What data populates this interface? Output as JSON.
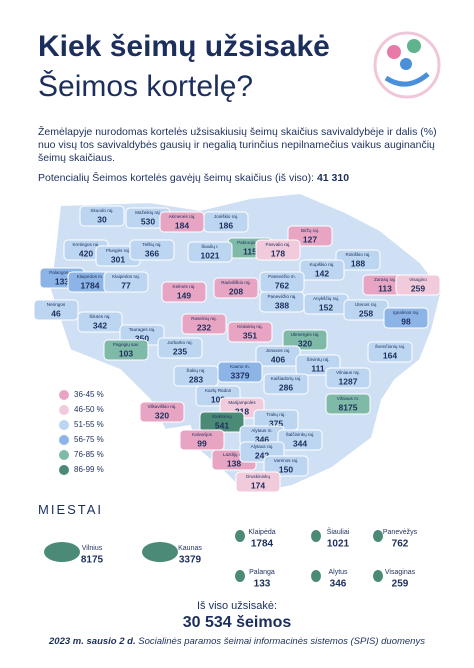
{
  "header": {
    "title_line1": "Kiek šeimų užsisakė",
    "title_line2": "Šeimos kortelę?"
  },
  "intro": {
    "text": "Žemėlapyje nurodomas kortelės užsisakiusių šeimų skaičius savivaldybėje ir dalis (%) nuo visų tos savivaldybės gausių ir negalią turinčius nepilnamečius vaikus auginančių šeimų skaičiaus.",
    "potential_label": "Potencialių Šeimos kortelės gavėjų šeimų skaičius (iš viso):",
    "potential_value": "41 310"
  },
  "legend": [
    {
      "label": "36-45 %",
      "color": "#e7a5c3"
    },
    {
      "label": "46-50 %",
      "color": "#f1cadb"
    },
    {
      "label": "51-55 %",
      "color": "#bcd5f1"
    },
    {
      "label": "56-75 %",
      "color": "#8db4e6"
    },
    {
      "label": "76-85 %",
      "color": "#7fb9a8"
    },
    {
      "label": "86-99 %",
      "color": "#4a8a77"
    }
  ],
  "map": {
    "regions": [
      {
        "name": "Skuodo raj.",
        "value": 30,
        "color": "#bcd5f1"
      },
      {
        "name": "Mažeikių raj.",
        "value": 530,
        "color": "#bcd5f1"
      },
      {
        "name": "Akmenės raj.",
        "value": 184,
        "color": "#e7a5c3"
      },
      {
        "name": "Joniškio raj.",
        "value": 186,
        "color": "#bcd5f1"
      },
      {
        "name": "Pakruojo raj.",
        "value": 115,
        "color": "#7fb9a8"
      },
      {
        "name": "Biržų raj.",
        "value": 127,
        "color": "#e7a5c3"
      },
      {
        "name": "Kretingos raj.",
        "value": 420,
        "color": "#bcd5f1"
      },
      {
        "name": "Plungės raj.",
        "value": 301,
        "color": "#bcd5f1"
      },
      {
        "name": "Telšių raj.",
        "value": 366,
        "color": "#bcd5f1"
      },
      {
        "name": "Šiaulių r.",
        "value": 1021,
        "color": "#bcd5f1"
      },
      {
        "name": "Pasvalio raj.",
        "value": 178,
        "color": "#f1cadb"
      },
      {
        "name": "Rokiškio raj.",
        "value": 188,
        "color": "#bcd5f1"
      },
      {
        "name": "Kupiškio raj.",
        "value": 142,
        "color": "#bcd5f1"
      },
      {
        "name": "Palangos m.",
        "value": 133,
        "color": "#8db4e6"
      },
      {
        "name": "Klaipėdos m.",
        "value": 1784,
        "color": "#8db4e6"
      },
      {
        "name": "Klaipėdos raj.",
        "value": 77,
        "color": "#bcd5f1"
      },
      {
        "name": "Zarasų raj.",
        "value": 113,
        "color": "#e7a5c3"
      },
      {
        "name": "Visagino",
        "value": 259,
        "color": "#f1cadb"
      },
      {
        "name": "Kelmės raj.",
        "value": 149,
        "color": "#e7a5c3"
      },
      {
        "name": "Radviliškio raj.",
        "value": 208,
        "color": "#e7a5c3"
      },
      {
        "name": "Panevėžio m.",
        "value": 762,
        "color": "#bcd5f1"
      },
      {
        "name": "Panevėžio raj.",
        "value": 388,
        "color": "#bcd5f1"
      },
      {
        "name": "Anykščių raj.",
        "value": 152,
        "color": "#bcd5f1"
      },
      {
        "name": "Utenos raj.",
        "value": 258,
        "color": "#bcd5f1"
      },
      {
        "name": "Ignalinos raj.",
        "value": 98,
        "color": "#8db4e6"
      },
      {
        "name": "Neringos",
        "value": 46,
        "color": "#bcd5f1"
      },
      {
        "name": "Šilutės raj.",
        "value": 342,
        "color": "#bcd5f1"
      },
      {
        "name": "Tauragės raj.",
        "value": 350,
        "color": "#bcd5f1"
      },
      {
        "name": "Raseinių raj.",
        "value": 232,
        "color": "#e7a5c3"
      },
      {
        "name": "Kėdainių raj.",
        "value": 351,
        "color": "#e7a5c3"
      },
      {
        "name": "Ukmergės raj.",
        "value": 320,
        "color": "#7fb9a8"
      },
      {
        "name": "Švenčionių raj.",
        "value": 164,
        "color": "#bcd5f1"
      },
      {
        "name": "Pagėgių sav.",
        "value": 103,
        "color": "#7fb9a8"
      },
      {
        "name": "Jurbarko raj.",
        "value": 235,
        "color": "#bcd5f1"
      },
      {
        "name": "Jonavos raj.",
        "value": 406,
        "color": "#bcd5f1"
      },
      {
        "name": "Širvintų raj.",
        "value": 111,
        "color": "#bcd5f1"
      },
      {
        "name": "Šakių raj.",
        "value": 283,
        "color": "#bcd5f1"
      },
      {
        "name": "Kauno m.",
        "value": 3379,
        "color": "#8db4e6"
      },
      {
        "name": "Kaišiadorių raj.",
        "value": 286,
        "color": "#bcd5f1"
      },
      {
        "name": "Vilniaus raj.",
        "value": 1287,
        "color": "#bcd5f1"
      },
      {
        "name": "Kazlų Rūdos",
        "value": 102,
        "color": "#bcd5f1"
      },
      {
        "name": "Vilkaviškio raj.",
        "value": 320,
        "color": "#e7a5c3"
      },
      {
        "name": "Marijampolės",
        "value": 218,
        "color": "#f1cadb"
      },
      {
        "name": "Vilniaus m.",
        "value": 8175,
        "color": "#7fb9a8"
      },
      {
        "name": "Elektrėnų",
        "value": 541,
        "color": "#4a8a77"
      },
      {
        "name": "Trakų raj.",
        "value": 375,
        "color": "#bcd5f1"
      },
      {
        "name": "Kalvarijos",
        "value": 99,
        "color": "#e7a5c3"
      },
      {
        "name": "Alytaus m.",
        "value": 346,
        "color": "#bcd5f1"
      },
      {
        "name": "Šalčininkų raj.",
        "value": 344,
        "color": "#bcd5f1"
      },
      {
        "name": "Lazdijų raj.",
        "value": 138,
        "color": "#e7a5c3"
      },
      {
        "name": "Alytaus raj.",
        "value": 242,
        "color": "#bcd5f1"
      },
      {
        "name": "Varėnos raj.",
        "value": 150,
        "color": "#bcd5f1"
      },
      {
        "name": "Druskininkų",
        "value": 174,
        "color": "#f1cadb"
      }
    ]
  },
  "cities": {
    "title": "MIESTAI",
    "items": [
      {
        "name": "Vilnius",
        "value": 8175
      },
      {
        "name": "Kaunas",
        "value": 3379
      },
      {
        "name": "Klaipėda",
        "value": 1784
      },
      {
        "name": "Šiauliai",
        "value": 1021
      },
      {
        "name": "Panevėžys",
        "value": 762
      },
      {
        "name": "Palanga",
        "value": 133
      },
      {
        "name": "Alytus",
        "value": 346
      },
      {
        "name": "Visaginas",
        "value": 259
      }
    ]
  },
  "footer": {
    "total_label": "Iš viso užsisakė:",
    "total_value": "30 534 šeimos",
    "note_date": "2023 m. sausio 2 d.",
    "note": "Socialinės paramos šeimai informacinės sistemos (SPIS) duomenys"
  }
}
